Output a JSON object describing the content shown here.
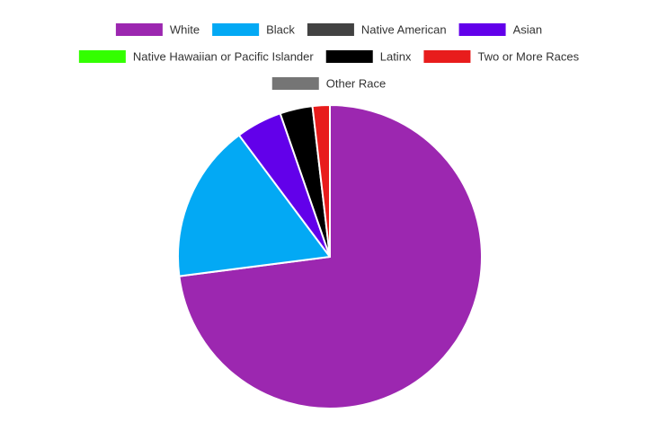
{
  "chart_data": {
    "type": "pie",
    "legend_position": "top",
    "slices": [
      {
        "label": "White",
        "value": 71.5,
        "color": "#9C27B0"
      },
      {
        "label": "Black",
        "value": 16.5,
        "color": "#03A9F4"
      },
      {
        "label": "Native American",
        "value": 0,
        "color": "#424242"
      },
      {
        "label": "Asian",
        "value": 4.8,
        "color": "#6200EA"
      },
      {
        "label": "Native Hawaiian or Pacific Islander",
        "value": 0,
        "color": "#33FF00"
      },
      {
        "label": "Latinx",
        "value": 3.4,
        "color": "#000000"
      },
      {
        "label": "Two or More Races",
        "value": 1.8,
        "color": "#E81C1C"
      },
      {
        "label": "Other Race",
        "value": 0,
        "color": "#757575"
      }
    ]
  }
}
